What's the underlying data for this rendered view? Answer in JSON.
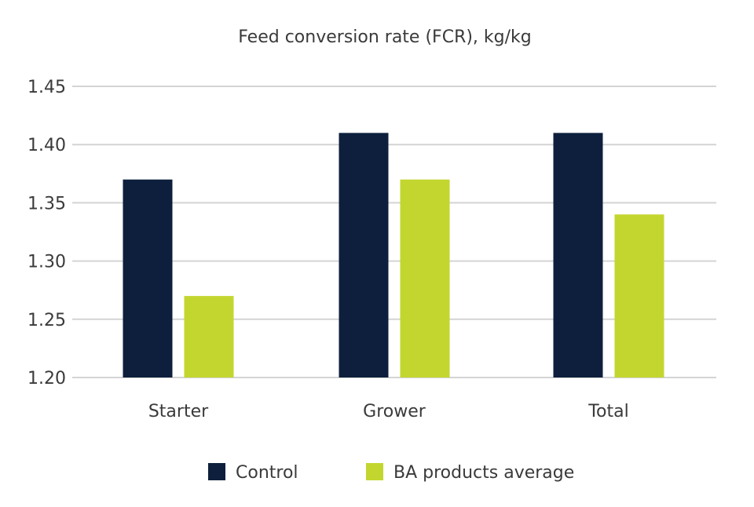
{
  "chart_data": {
    "type": "bar",
    "title": "Feed conversion rate (FCR), kg/kg",
    "xlabel": "",
    "ylabel": "",
    "categories": [
      "Starter",
      "Grower",
      "Total"
    ],
    "series": [
      {
        "name": "Control",
        "values": [
          1.37,
          1.41,
          1.41
        ],
        "color": "#0d1f3c"
      },
      {
        "name": "BA products average",
        "values": [
          1.27,
          1.37,
          1.34
        ],
        "color": "#c3d62f"
      }
    ],
    "ylim": [
      1.2,
      1.45
    ],
    "yticks": [
      "1.20",
      "1.25",
      "1.30",
      "1.35",
      "1.40",
      "1.45"
    ],
    "grid": true,
    "legend": "bottom"
  }
}
